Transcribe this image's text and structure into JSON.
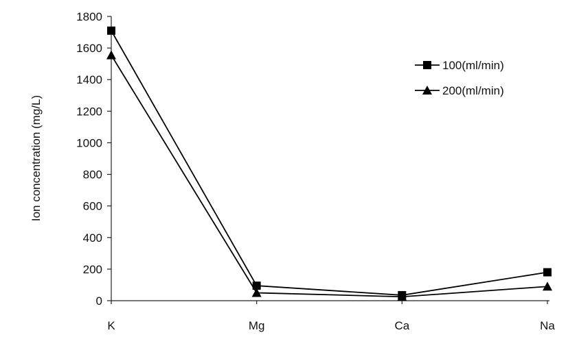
{
  "chart_data": {
    "type": "line",
    "title": "",
    "xlabel": "",
    "ylabel": "Ion concentration (mg/L)",
    "categories": [
      "K",
      "Mg",
      "Ca",
      "Na"
    ],
    "ylim": [
      0,
      1800
    ],
    "yticks": [
      0,
      200,
      400,
      600,
      800,
      1000,
      1200,
      1400,
      1600,
      1800
    ],
    "grid": false,
    "legend_position": "right",
    "series": [
      {
        "name": "100(ml/min)",
        "marker": "square",
        "color": "#000000",
        "values": [
          1710,
          95,
          35,
          180
        ]
      },
      {
        "name": "200(ml/min)",
        "marker": "triangle",
        "color": "#000000",
        "values": [
          1555,
          50,
          25,
          90
        ]
      }
    ]
  }
}
